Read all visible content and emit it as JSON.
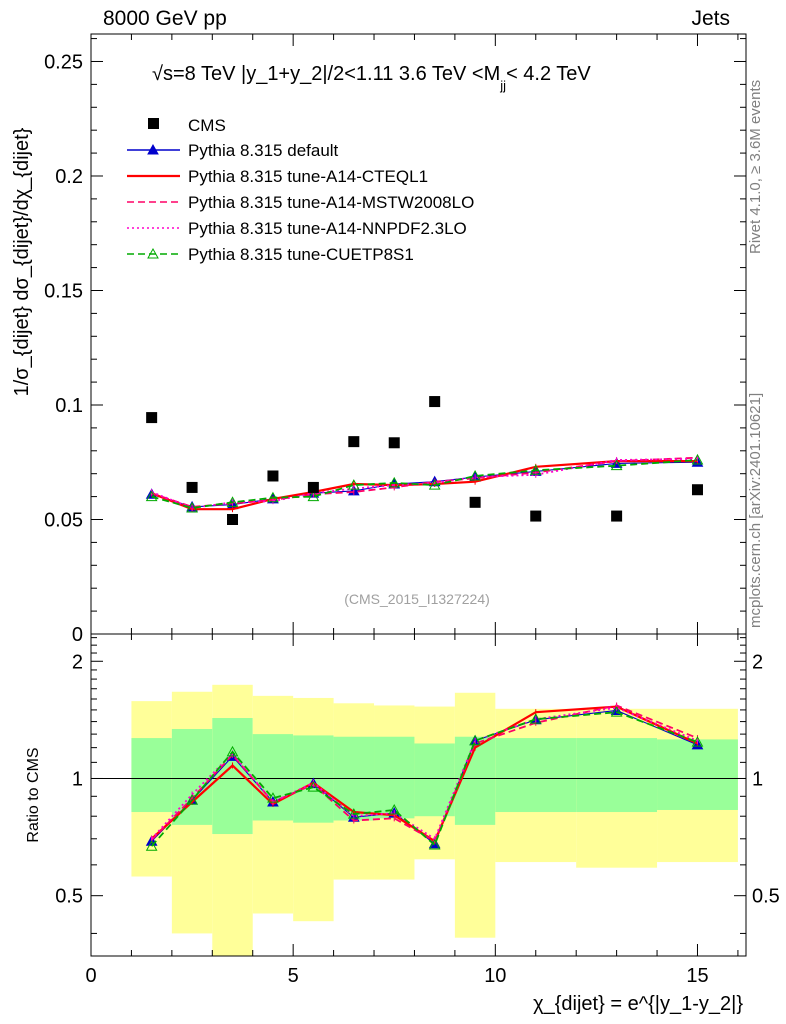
{
  "header": {
    "left": "8000 GeV pp",
    "right": "Jets",
    "plot_title": "√s=8 TeV |y_1+y_2|/2<1.11 3.6 TeV <M",
    "plot_title_sub": "jj",
    "plot_title_end": "< 4.2 TeV",
    "analysis_tag": "(CMS_2015_I1327224)"
  },
  "side_labels": {
    "rivet": "Rivet 4.1.0, ≥ 3.6M events",
    "mcplots": "mcplots.cern.ch [arXiv:2401.10621]"
  },
  "axes": {
    "main_ylabel": "1/σ_{dijet} dσ_{dijet}/dχ_{dijet}",
    "ratio_ylabel": "Ratio to CMS",
    "xlabel": "χ_{dijet} = e^{|y_1-y_2|}",
    "main_yticks": [
      "0.25",
      "0.2",
      "0.15",
      "0.1",
      "0.05",
      "0"
    ],
    "ratio_yticks": [
      "2",
      "1",
      "0.5"
    ],
    "xticks": [
      "0",
      "5",
      "10",
      "15"
    ]
  },
  "colors": {
    "data": "#000000",
    "default": "#0000cc",
    "cteql1": "#ff0000",
    "mstw": "#ff0066",
    "nnpdf": "#ff00cc",
    "cuetp8s1": "#00aa00",
    "band_inner": "#99ff99",
    "band_outer": "#ffff99"
  },
  "chart_data": {
    "type": "line",
    "x_range": [
      0,
      16.2
    ],
    "main_ylim": [
      0,
      0.262
    ],
    "ratio_ylim": [
      0.35,
      2.35
    ],
    "ratio_scale": "log",
    "bins": [
      [
        1,
        2
      ],
      [
        2,
        3
      ],
      [
        3,
        4
      ],
      [
        4,
        5
      ],
      [
        5,
        6
      ],
      [
        6,
        7
      ],
      [
        7,
        8
      ],
      [
        8,
        9
      ],
      [
        9,
        10
      ],
      [
        10,
        12
      ],
      [
        12,
        14
      ],
      [
        14,
        16
      ]
    ],
    "x": [
      1.5,
      2.5,
      3.5,
      4.5,
      5.5,
      6.5,
      7.5,
      8.5,
      9.5,
      11,
      13,
      15
    ],
    "data": {
      "name": "CMS",
      "values": [
        0.0945,
        0.064,
        0.05,
        0.069,
        0.064,
        0.084,
        0.0835,
        0.1015,
        0.0575,
        0.0515,
        0.0515,
        0.063
      ]
    },
    "band_inner": {
      "lo": [
        0.82,
        0.76,
        0.72,
        0.78,
        0.77,
        0.78,
        0.79,
        0.8,
        0.76,
        0.82,
        0.82,
        0.83
      ],
      "hi": [
        1.27,
        1.34,
        1.43,
        1.3,
        1.29,
        1.28,
        1.28,
        1.23,
        1.28,
        1.27,
        1.27,
        1.26
      ]
    },
    "band_outer": {
      "lo": [
        0.56,
        0.4,
        0.35,
        0.45,
        0.43,
        0.55,
        0.55,
        0.62,
        0.39,
        0.61,
        0.59,
        0.61
      ],
      "hi": [
        1.58,
        1.67,
        1.74,
        1.63,
        1.61,
        1.56,
        1.54,
        1.53,
        1.66,
        1.51,
        1.51,
        1.51
      ]
    },
    "series": [
      {
        "name": "Pythia 8.315 default",
        "key": "default",
        "marker": "triangle-filled",
        "dash": "solid",
        "values": [
          0.061,
          0.0555,
          0.0565,
          0.059,
          0.0615,
          0.0625,
          0.0655,
          0.0665,
          0.0685,
          0.071,
          0.0745,
          0.075
        ],
        "ratio": [
          0.69,
          0.88,
          1.14,
          0.87,
          0.97,
          0.795,
          0.815,
          0.68,
          1.25,
          1.415,
          1.495,
          1.22
        ]
      },
      {
        "name": "Pythia 8.315 tune-A14-CTEQL1",
        "key": "cteql1",
        "marker": "none",
        "dash": "solid",
        "values": [
          0.0615,
          0.0545,
          0.0545,
          0.059,
          0.062,
          0.0655,
          0.065,
          0.0655,
          0.0665,
          0.073,
          0.0755,
          0.0755
        ],
        "ratio": [
          0.7,
          0.87,
          1.08,
          0.86,
          0.975,
          0.82,
          0.805,
          0.69,
          1.2,
          1.48,
          1.53,
          1.23
        ]
      },
      {
        "name": "Pythia 8.315 tune-A14-MSTW2008LO",
        "key": "mstw",
        "marker": "none",
        "dash": "dashed",
        "values": [
          0.0615,
          0.0555,
          0.057,
          0.0585,
          0.061,
          0.062,
          0.064,
          0.0665,
          0.068,
          0.0705,
          0.0755,
          0.077
        ],
        "ratio": [
          0.695,
          0.89,
          1.15,
          0.87,
          0.965,
          0.78,
          0.79,
          0.69,
          1.23,
          1.39,
          1.54,
          1.27
        ]
      },
      {
        "name": "Pythia 8.315 tune-A14-NNPDF2.3LO",
        "key": "nnpdf",
        "marker": "none",
        "dash": "dotted",
        "values": [
          0.062,
          0.055,
          0.0575,
          0.058,
          0.0615,
          0.0635,
          0.065,
          0.066,
          0.0685,
          0.0695,
          0.076,
          0.0765
        ],
        "ratio": [
          0.7,
          0.91,
          1.16,
          0.87,
          0.975,
          0.8,
          0.815,
          0.7,
          1.25,
          1.42,
          1.52,
          1.25
        ]
      },
      {
        "name": "Pythia 8.315 tune-CUETP8S1",
        "key": "cuetp8s1",
        "marker": "triangle-open",
        "dash": "dashed",
        "values": [
          0.06,
          0.055,
          0.0575,
          0.0595,
          0.06,
          0.065,
          0.066,
          0.065,
          0.069,
          0.0715,
          0.0735,
          0.076
        ],
        "ratio": [
          0.67,
          0.88,
          1.17,
          0.89,
          0.95,
          0.81,
          0.83,
          0.675,
          1.25,
          1.42,
          1.48,
          1.24
        ]
      }
    ]
  }
}
